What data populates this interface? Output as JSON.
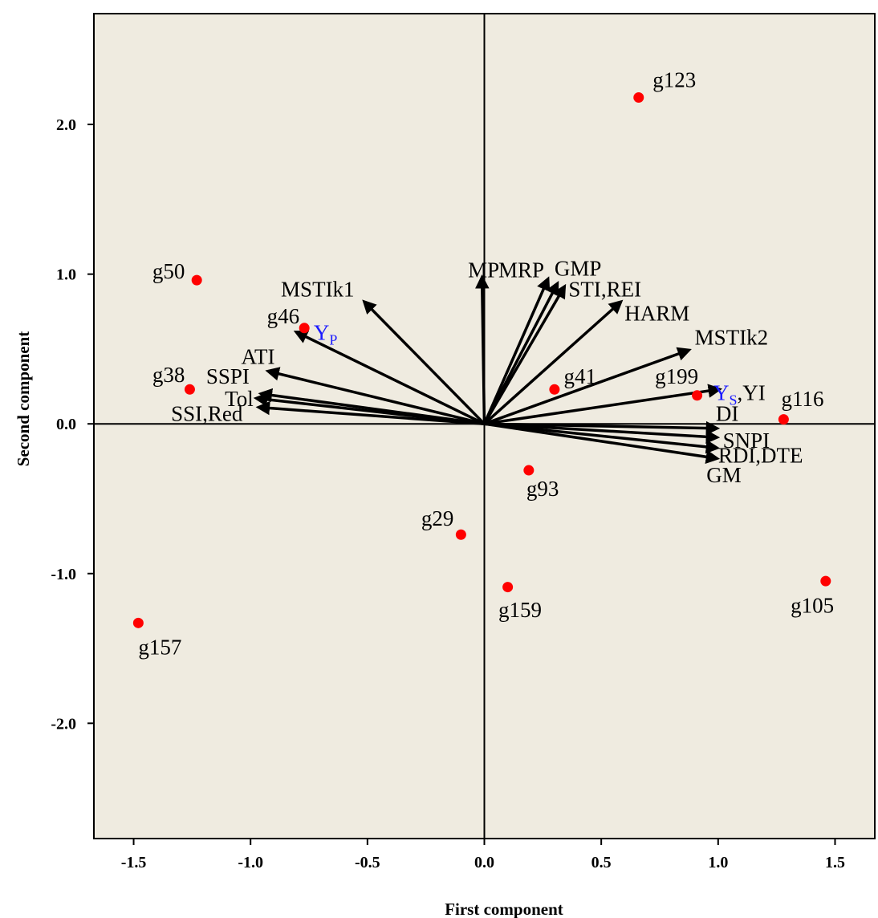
{
  "chart_data": {
    "type": "scatter",
    "title": "",
    "xlabel": "First component",
    "ylabel": "Second component",
    "xlim": [
      -1.67,
      1.67
    ],
    "ylim": [
      -2.77,
      2.74
    ],
    "xticks": [
      -1.5,
      -1.0,
      -0.5,
      0.0,
      0.5,
      1.0,
      1.5
    ],
    "xtick_labels": [
      "-1.5",
      "-1.0",
      "-0.5",
      "0.0",
      "0.5",
      "1.0",
      "1.5"
    ],
    "yticks": [
      -2.0,
      -1.0,
      0.0,
      1.0,
      2.0
    ],
    "ytick_labels": [
      "-2.0",
      "-1.0",
      "0.0",
      "1.0",
      "2.0"
    ],
    "grid": false,
    "reference_lines": {
      "x": 0,
      "y": 0
    },
    "background_color": "#efebe0",
    "point_color": "#ff0000",
    "vector_color": "#000000",
    "highlight_color": "#1a1aff",
    "genotypes": [
      {
        "name": "g123",
        "x": 0.66,
        "y": 2.18
      },
      {
        "name": "g50",
        "x": -1.23,
        "y": 0.96
      },
      {
        "name": "g46",
        "x": -0.77,
        "y": 0.64
      },
      {
        "name": "g38",
        "x": -1.26,
        "y": 0.23
      },
      {
        "name": "g41",
        "x": 0.3,
        "y": 0.23
      },
      {
        "name": "g199",
        "x": 0.91,
        "y": 0.19
      },
      {
        "name": "g116",
        "x": 1.28,
        "y": 0.03
      },
      {
        "name": "g93",
        "x": 0.19,
        "y": -0.31
      },
      {
        "name": "g29",
        "x": -0.1,
        "y": -0.74
      },
      {
        "name": "g159",
        "x": 0.1,
        "y": -1.09
      },
      {
        "name": "g105",
        "x": 1.46,
        "y": -1.05
      },
      {
        "name": "g157",
        "x": -1.48,
        "y": -1.33
      }
    ],
    "vectors": [
      {
        "label": "MP",
        "x": -0.01,
        "y": 0.97
      },
      {
        "label": "MRP",
        "x": 0.27,
        "y": 0.96
      },
      {
        "label": "GMP",
        "x": 0.31,
        "y": 0.93
      },
      {
        "label": "STI,REI",
        "x": 0.34,
        "y": 0.91
      },
      {
        "label": "HARM",
        "x": 0.58,
        "y": 0.81
      },
      {
        "label": "MSTIk2",
        "x": 0.87,
        "y": 0.49
      },
      {
        "label": "MSTIk1",
        "x": -0.51,
        "y": 0.81
      },
      {
        "label": "YP",
        "x": -0.8,
        "y": 0.61
      },
      {
        "label": "ATI",
        "x": -0.92,
        "y": 0.35
      },
      {
        "label": "SSPI",
        "x": -0.95,
        "y": 0.2
      },
      {
        "label": "Tol",
        "x": -0.97,
        "y": 0.17
      },
      {
        "label": "SSI,Red",
        "x": -0.96,
        "y": 0.11
      },
      {
        "label": "YS,YI",
        "x": 1.0,
        "y": 0.23
      },
      {
        "label": "DI",
        "x": 0.99,
        "y": -0.03
      },
      {
        "label": "SNPI",
        "x": 0.99,
        "y": -0.09
      },
      {
        "label": "RDI,DTE",
        "x": 0.99,
        "y": -0.16
      },
      {
        "label": "GM",
        "x": 0.99,
        "y": -0.23
      }
    ],
    "annotations": [
      {
        "text": "MP",
        "x": -0.07,
        "y": 0.98
      },
      {
        "text": "MRP",
        "x": 0.06,
        "y": 0.98
      },
      {
        "text": "GMP",
        "x": 0.3,
        "y": 0.99
      },
      {
        "text": "STI,REI",
        "x": 0.36,
        "y": 0.85
      },
      {
        "text": "HARM",
        "x": 0.6,
        "y": 0.69
      },
      {
        "text": "MSTIk2",
        "x": 0.9,
        "y": 0.53
      },
      {
        "text": "MSTIk1",
        "x": -0.87,
        "y": 0.85
      },
      {
        "text": "ATI",
        "x": -1.04,
        "y": 0.4
      },
      {
        "text": "SSPI",
        "x": -1.19,
        "y": 0.27
      },
      {
        "text": "Tol",
        "x": -1.11,
        "y": 0.12
      },
      {
        "text": "SSI,Red",
        "x": -1.34,
        "y": 0.02
      },
      {
        "text": "DI",
        "x": 0.99,
        "y": 0.02
      },
      {
        "text": "SNPI",
        "x": 1.02,
        "y": -0.16
      },
      {
        "text": "RDI,DTE",
        "x": 1.0,
        "y": -0.26
      },
      {
        "text": "GM",
        "x": 0.95,
        "y": -0.39
      },
      {
        "text": "YP",
        "x": -0.73,
        "y": 0.56,
        "main": "Y",
        "sub": "P",
        "color": "highlight"
      },
      {
        "text": "YS,YI",
        "x": 0.98,
        "y": 0.16,
        "main": "Y",
        "sub": "S",
        "rest": ",YI",
        "color": "highlight"
      },
      {
        "text": "g123",
        "x": 0.72,
        "y": 2.25
      },
      {
        "text": "g50",
        "x": -1.42,
        "y": 0.97
      },
      {
        "text": "g46",
        "x": -0.93,
        "y": 0.67
      },
      {
        "text": "g38",
        "x": -1.42,
        "y": 0.28
      },
      {
        "text": "g41",
        "x": 0.34,
        "y": 0.27
      },
      {
        "text": "g199",
        "x": 0.73,
        "y": 0.27
      },
      {
        "text": "g116",
        "x": 1.27,
        "y": 0.12
      },
      {
        "text": "g93",
        "x": 0.18,
        "y": -0.48
      },
      {
        "text": "g29",
        "x": -0.27,
        "y": -0.68
      },
      {
        "text": "g159",
        "x": 0.06,
        "y": -1.29
      },
      {
        "text": "g105",
        "x": 1.31,
        "y": -1.26
      },
      {
        "text": "g157",
        "x": -1.48,
        "y": -1.54
      }
    ]
  }
}
